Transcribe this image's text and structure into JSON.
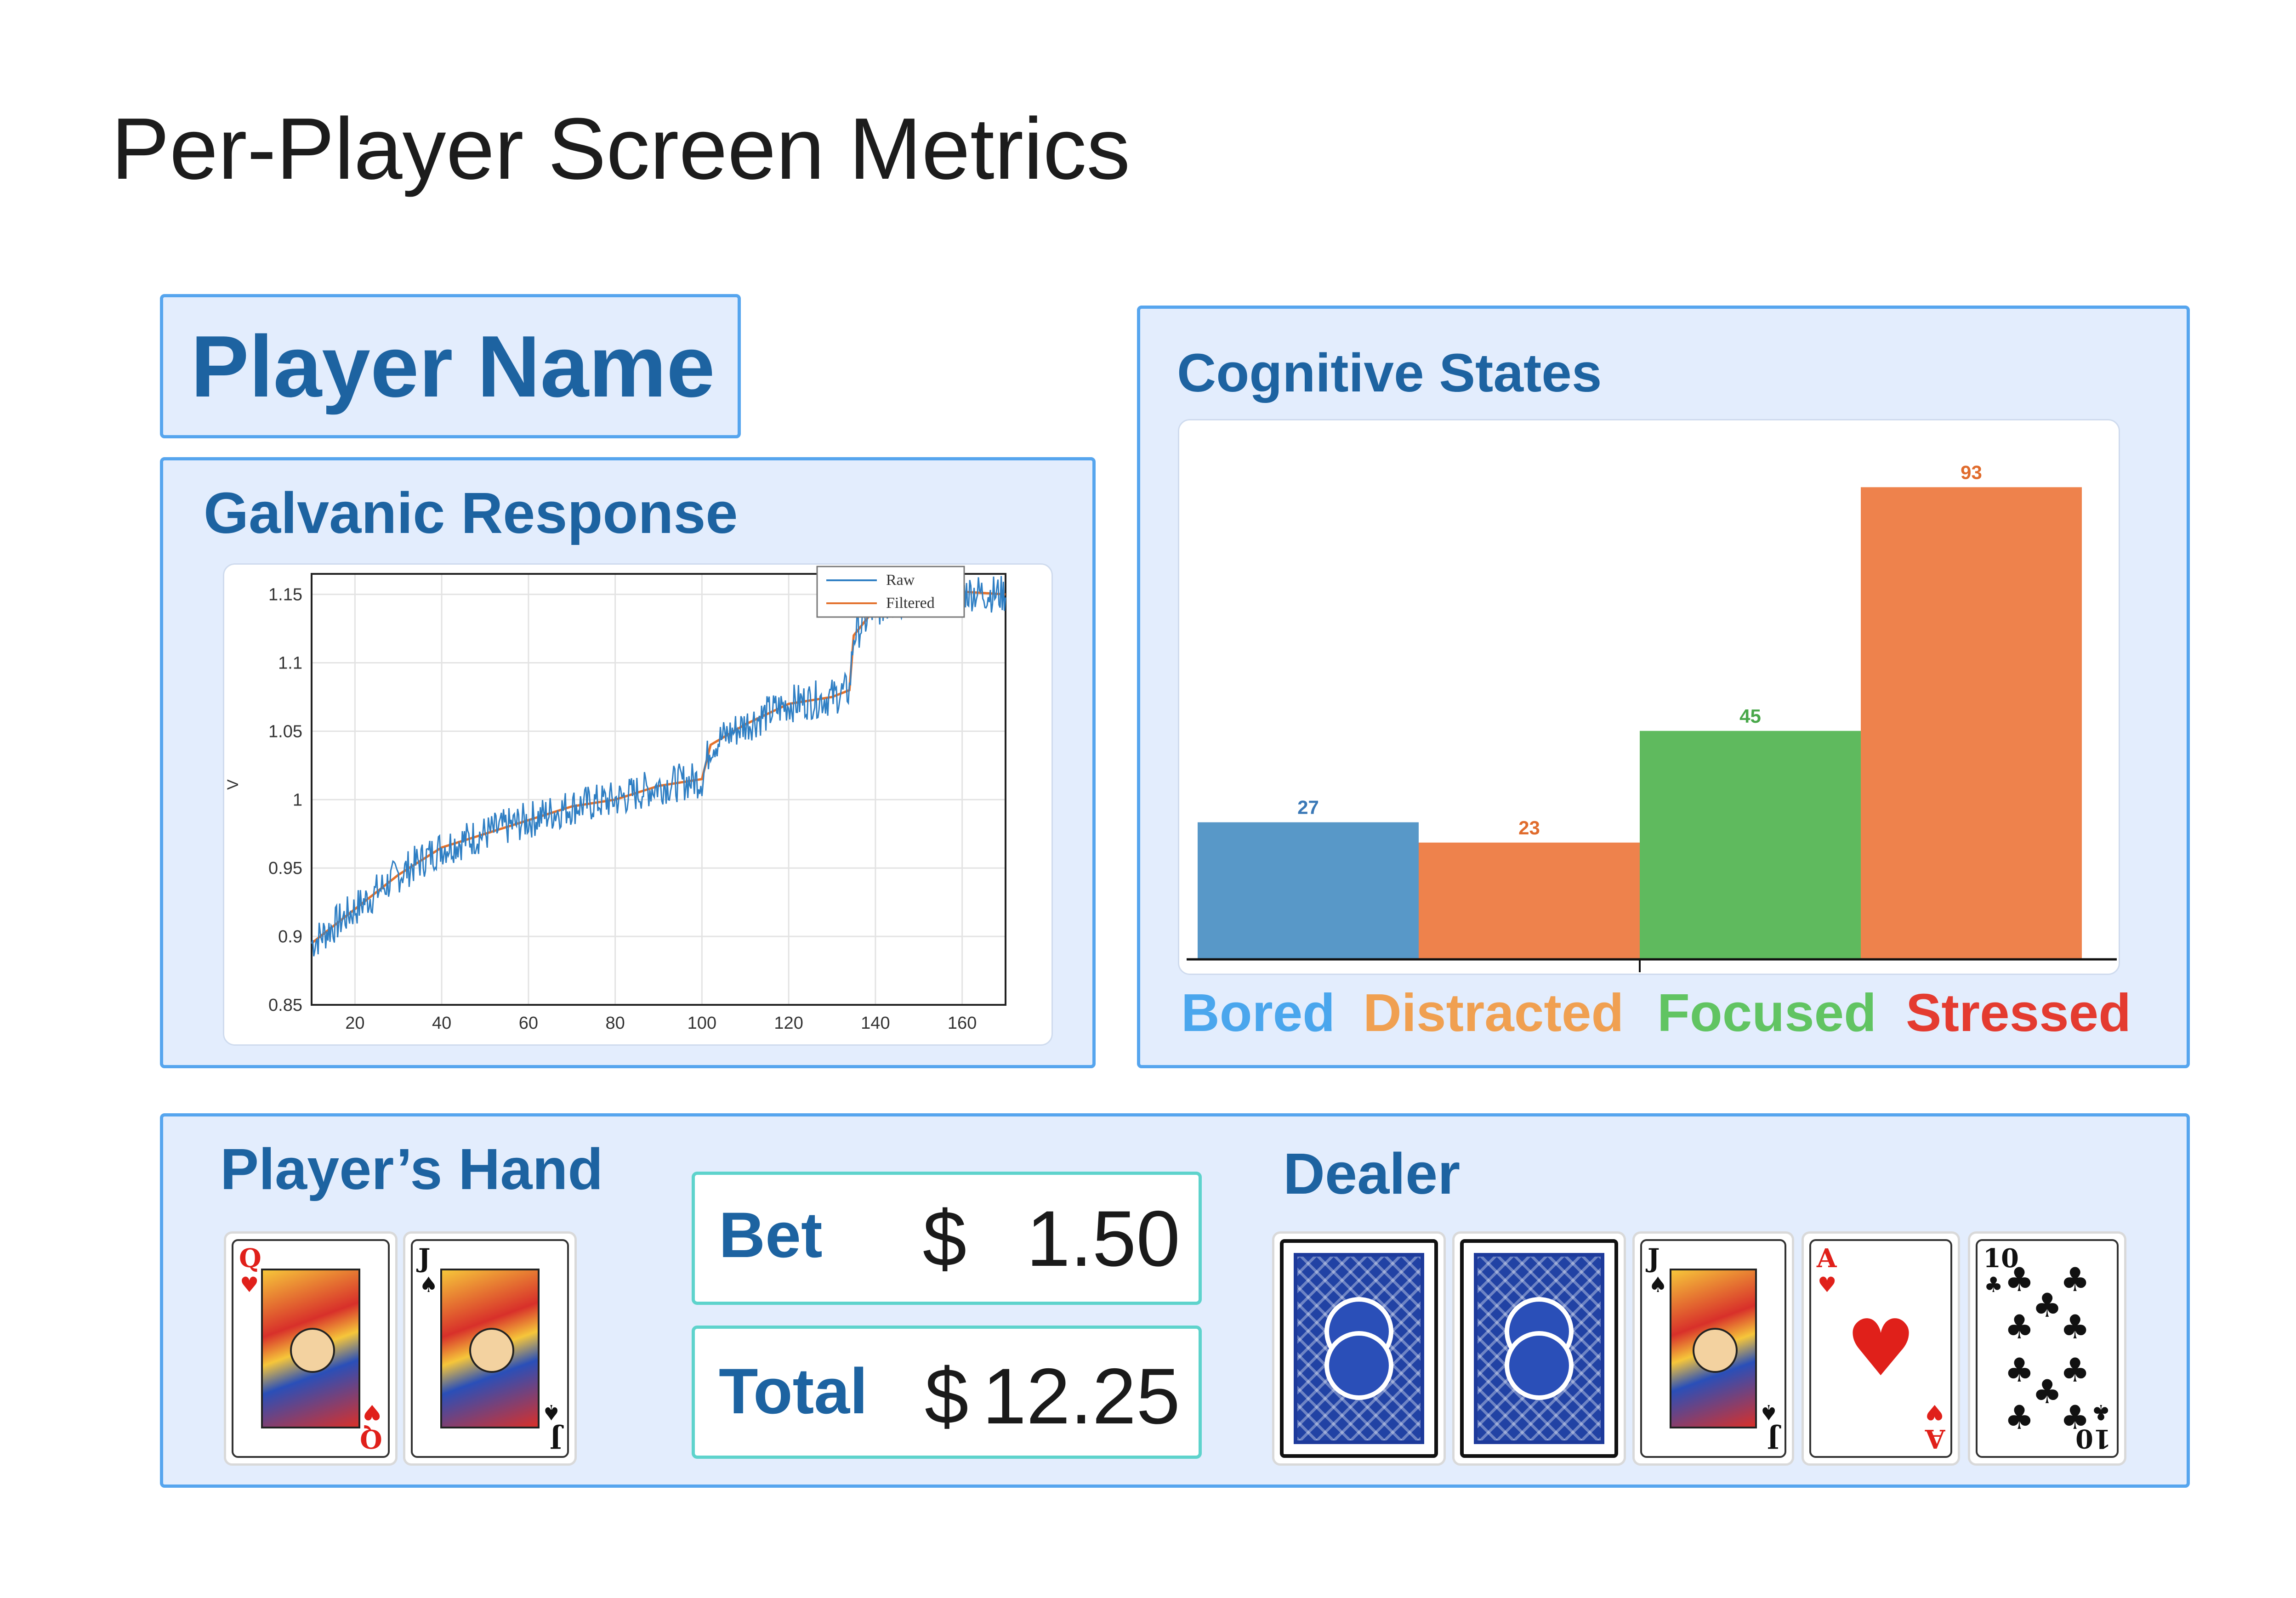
{
  "page_title": "Per-Player Screen Metrics",
  "player": {
    "name": "Player Name"
  },
  "galvanic": {
    "title": "Galvanic Response",
    "ylabel": "V",
    "legend": [
      "Raw",
      "Filtered"
    ],
    "x_ticks": [
      "20",
      "40",
      "60",
      "80",
      "100",
      "120",
      "140",
      "160"
    ],
    "y_ticks": [
      "0.85",
      "0.9",
      "0.95",
      "1",
      "1.05",
      "1.1",
      "1.15"
    ],
    "xlim": [
      10,
      170
    ],
    "ylim": [
      0.85,
      1.165
    ],
    "series_colors": {
      "raw": "#2f7fc4",
      "filtered": "#e3712c"
    },
    "trend": [
      [
        10,
        0.895
      ],
      [
        20,
        0.92
      ],
      [
        30,
        0.945
      ],
      [
        40,
        0.965
      ],
      [
        50,
        0.975
      ],
      [
        55,
        0.98
      ],
      [
        60,
        0.985
      ],
      [
        70,
        0.995
      ],
      [
        80,
        1.0
      ],
      [
        90,
        1.01
      ],
      [
        100,
        1.015
      ],
      [
        102,
        1.04
      ],
      [
        110,
        1.055
      ],
      [
        120,
        1.07
      ],
      [
        130,
        1.075
      ],
      [
        134,
        1.08
      ],
      [
        135,
        1.12
      ],
      [
        140,
        1.14
      ],
      [
        150,
        1.148
      ],
      [
        160,
        1.152
      ],
      [
        170,
        1.15
      ]
    ]
  },
  "cognitive": {
    "title": "Cognitive States",
    "labels": [
      {
        "text": "Bored",
        "color": "#4aa6ed"
      },
      {
        "text": "Distracted",
        "color": "#f0a051"
      },
      {
        "text": "Focused",
        "color": "#61c462"
      },
      {
        "text": "Stressed",
        "color": "#e43b30"
      }
    ]
  },
  "chart_data": {
    "type": "bar",
    "categories": [
      "Bored",
      "Distracted",
      "Focused",
      "Stressed"
    ],
    "values": [
      27,
      23,
      45,
      93
    ],
    "ylim": [
      0,
      100
    ],
    "bar_colors": [
      "#5898c8",
      "#ee824c",
      "#5fba5e",
      "#ee824c"
    ],
    "label_colors": [
      "#3a78b6",
      "#e06b2c",
      "#49a84a",
      "#e06b2c"
    ]
  },
  "hand": {
    "title": "Player’s Hand",
    "cards": [
      {
        "rank": "Q",
        "suit": "♥",
        "type": "face"
      },
      {
        "rank": "J",
        "suit": "♠",
        "type": "face"
      }
    ]
  },
  "bet": {
    "label": "Bet",
    "currency": "$",
    "amount": "1.50"
  },
  "total": {
    "label": "Total",
    "currency": "$",
    "amount": "12.25"
  },
  "dealer": {
    "title": "Dealer",
    "cards": [
      {
        "type": "back"
      },
      {
        "type": "back"
      },
      {
        "rank": "J",
        "suit": "♠",
        "type": "face"
      },
      {
        "rank": "A",
        "suit": "♥",
        "type": "ace"
      },
      {
        "rank": "10",
        "suit": "♣",
        "type": "pips"
      }
    ]
  }
}
